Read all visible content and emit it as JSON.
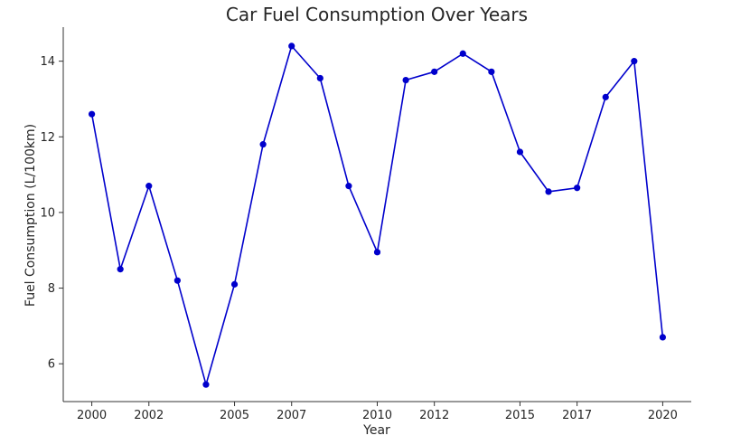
{
  "chart_data": {
    "type": "line",
    "title": "Car Fuel Consumption Over Years",
    "xlabel": "Year",
    "ylabel": "Fuel Consumption (L/100km)",
    "xlim": [
      1999.0,
      2021.0
    ],
    "ylim": [
      5.0,
      14.9
    ],
    "x_ticks": [
      2000,
      2002,
      2005,
      2007,
      2010,
      2012,
      2015,
      2017,
      2020
    ],
    "y_ticks": [
      6,
      8,
      10,
      12,
      14
    ],
    "grid": false,
    "legend": "none",
    "series": [
      {
        "color": "#0000cc",
        "x": [
          2000.0,
          2001.0,
          2002.0,
          2003.0,
          2004.0,
          2005.0,
          2006.0,
          2007.0,
          2008.0,
          2009.0,
          2010.0,
          2011.0,
          2012.0,
          2013.0,
          2014.0,
          2015.0,
          2016.0,
          2017.0,
          2018.0,
          2019.0,
          2020.0
        ],
        "y": [
          12.6,
          8.5,
          10.7,
          8.2,
          5.45,
          8.1,
          11.8,
          14.4,
          13.55,
          10.7,
          8.95,
          13.5,
          13.72,
          14.2,
          13.72,
          11.6,
          10.55,
          10.65,
          13.05,
          14.0,
          6.7
        ]
      }
    ]
  }
}
